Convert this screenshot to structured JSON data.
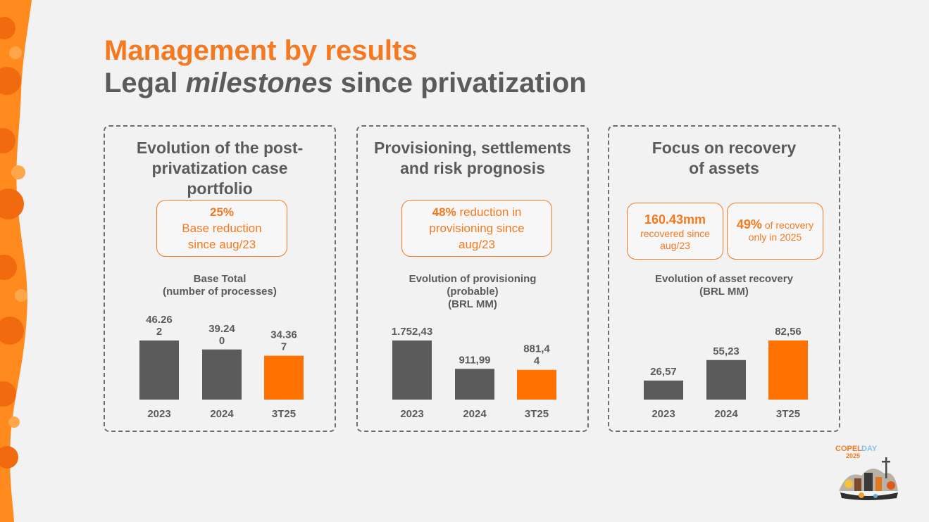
{
  "header": {
    "title_line1": "Management by results",
    "title_line2_pre": "Legal ",
    "title_line2_em": "milestones",
    "title_line2_post": " since privatization"
  },
  "panels": [
    {
      "title": "Evolution of the post-privatization case portfolio",
      "callouts": [
        {
          "value": "25%",
          "text": "Base reduction since aug/23"
        }
      ],
      "chart_label": [
        "Base Total",
        "(number of processes)"
      ]
    },
    {
      "title": "Provisioning, settlements and risk prognosis",
      "callouts": [
        {
          "value": "48%",
          "text": "reduction in provisioning since aug/23"
        }
      ],
      "chart_label": [
        "Evolution of provisioning",
        "(probable)",
        "(BRL MM)"
      ]
    },
    {
      "title": "Focus on recovery of assets",
      "callouts": [
        {
          "value": "160.43mm",
          "text": "recovered since aug/23"
        },
        {
          "value": "49%",
          "text": "of recovery only in 2025"
        }
      ],
      "chart_label": [
        "Evolution of asset recovery",
        "(BRL MM)"
      ]
    }
  ],
  "chart_data": [
    {
      "type": "bar",
      "title": "Base Total (number of processes)",
      "categories": [
        "2023",
        "2024",
        "3T25"
      ],
      "values": [
        46262,
        39240,
        34367
      ],
      "labels": [
        [
          "46.26",
          "2"
        ],
        [
          "39.24",
          "0"
        ],
        [
          "34.36",
          "7"
        ]
      ],
      "ylim": [
        0,
        46262
      ],
      "colors": [
        "#5b5b5b",
        "#5b5b5b",
        "#ff7200"
      ]
    },
    {
      "type": "bar",
      "title": "Evolution of provisioning (probable) (BRL MM)",
      "categories": [
        "2023",
        "2024",
        "3T25"
      ],
      "values": [
        1752.43,
        911.99,
        881.44
      ],
      "labels": [
        [
          "1.752,43"
        ],
        [
          "911,99"
        ],
        [
          "881,4",
          "4"
        ]
      ],
      "ylim": [
        0,
        1752.43
      ],
      "colors": [
        "#5b5b5b",
        "#5b5b5b",
        "#ff7200"
      ]
    },
    {
      "type": "bar",
      "title": "Evolution of asset recovery (BRL MM)",
      "categories": [
        "2023",
        "2024",
        "3T25"
      ],
      "values": [
        26.57,
        55.23,
        82.56
      ],
      "labels": [
        [
          "26,57"
        ],
        [
          "55,23"
        ],
        [
          "82,56"
        ]
      ],
      "ylim": [
        0,
        82.56
      ],
      "colors": [
        "#5b5b5b",
        "#5b5b5b",
        "#ff7200"
      ]
    }
  ],
  "logo": {
    "word1": "COPEL",
    "word2": "DAY",
    "year": "2025"
  },
  "colors": {
    "accent": "#f47920",
    "bar_gray": "#5b5b5b",
    "bar_orange": "#ff7200"
  }
}
